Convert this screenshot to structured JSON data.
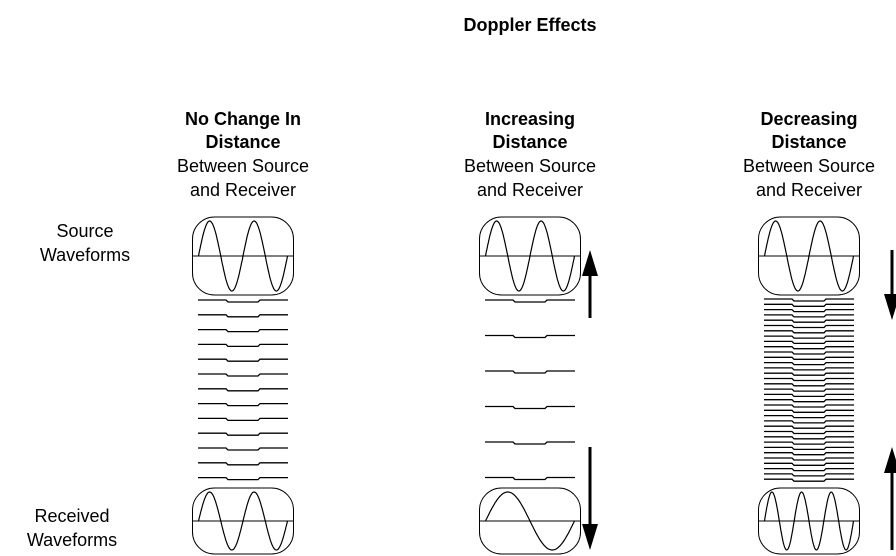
{
  "title": "Doppler Effects",
  "columns": [
    {
      "heading": [
        "No Change In",
        "Distance"
      ],
      "subheading": [
        "Between Source",
        "and Receiver"
      ]
    },
    {
      "heading": [
        "Increasing",
        "Distance"
      ],
      "subheading": [
        "Between Source",
        "and Receiver"
      ]
    },
    {
      "heading": [
        "Decreasing",
        "Distance"
      ],
      "subheading": [
        "Between Source",
        "and Receiver"
      ]
    }
  ],
  "row_labels": [
    [
      "Source",
      "Waveforms"
    ],
    [
      "Received",
      "Waveforms"
    ]
  ]
}
